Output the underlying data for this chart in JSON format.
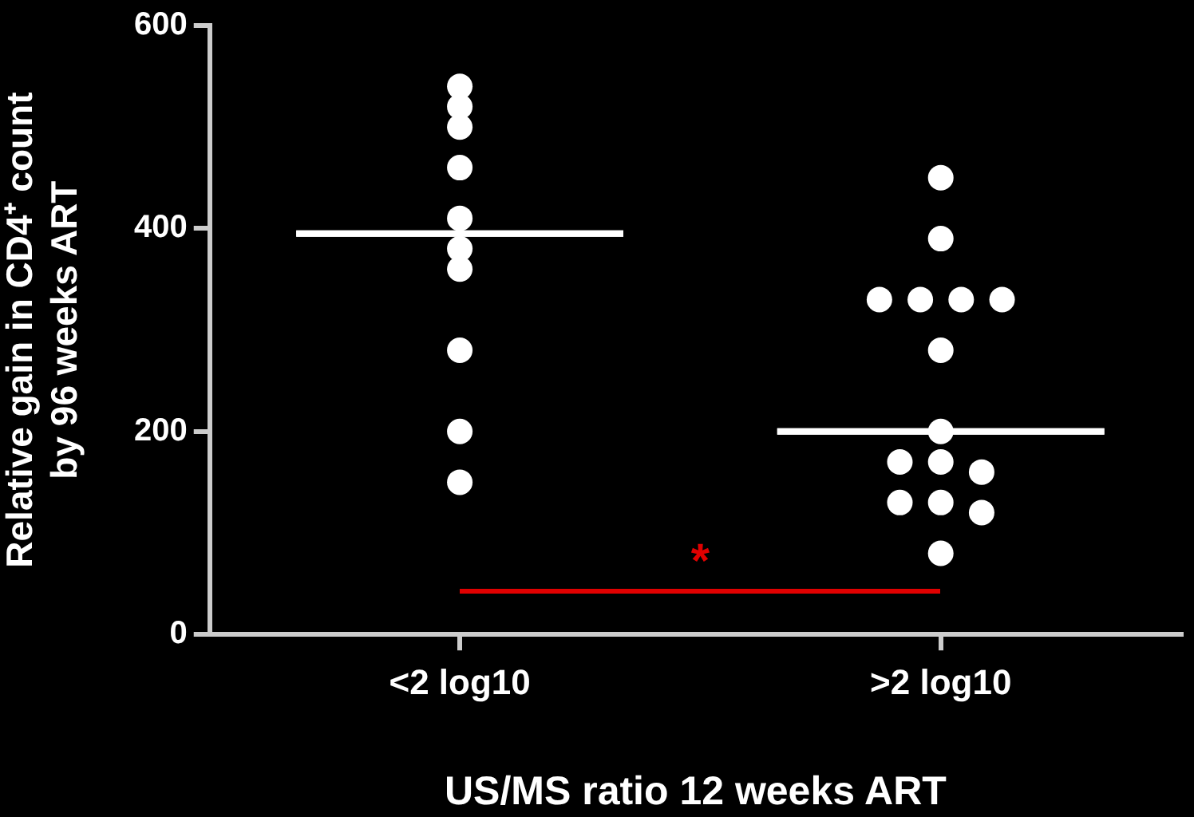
{
  "chart_data": {
    "type": "scatter",
    "xlabel": "US/MS ratio 12 weeks ART",
    "ylabel": "Relative gain in CD4⁺ count\nby 96 weeks ART",
    "categories": [
      "<2 log10",
      ">2 log10"
    ],
    "ylim": [
      0,
      600
    ],
    "yticks": [
      0,
      200,
      400,
      600
    ],
    "legend": false,
    "marker": "circle",
    "series": [
      {
        "color": "#ffffff",
        "x": [
          "<2 log10",
          "<2 log10",
          "<2 log10",
          "<2 log10",
          "<2 log10",
          "<2 log10",
          "<2 log10",
          "<2 log10",
          "<2 log10",
          "<2 log10"
        ],
        "values": [
          540,
          520,
          500,
          460,
          410,
          380,
          360,
          280,
          200,
          150
        ]
      },
      {
        "color": "#ffffff",
        "x": [
          ">2 log10",
          ">2 log10",
          ">2 log10",
          ">2 log10",
          ">2 log10",
          ">2 log10",
          ">2 log10",
          ">2 log10",
          ">2 log10",
          ">2 log10",
          ">2 log10",
          ">2 log10",
          ">2 log10",
          ">2 log10",
          ">2 log10"
        ],
        "values": [
          450,
          390,
          330,
          330,
          330,
          330,
          280,
          200,
          170,
          170,
          160,
          130,
          130,
          120,
          80
        ]
      },
      {
        "type": "box",
        "color": "#ffffff",
        "boxes": [
          {
            "low": 395,
            "q1": 395,
            "median": 395,
            "q3": 395,
            "high": 395
          },
          {
            "low": 200,
            "q1": 200,
            "median": 200,
            "q3": 200,
            "high": 200
          }
        ]
      }
    ],
    "annotations": [
      "*"
    ]
  }
}
